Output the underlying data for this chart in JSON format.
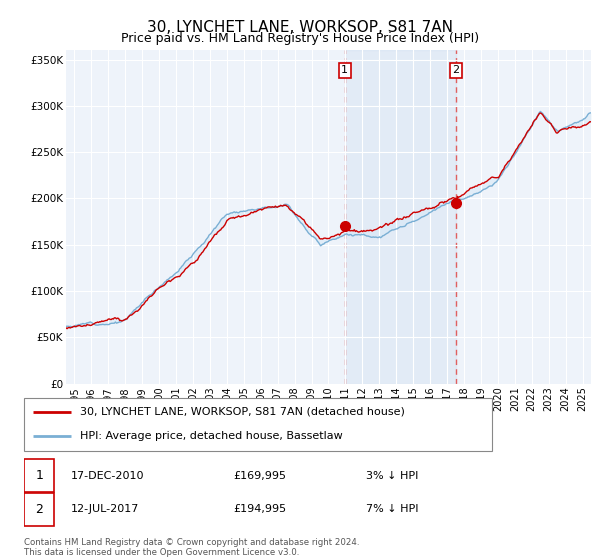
{
  "title": "30, LYNCHET LANE, WORKSOP, S81 7AN",
  "subtitle": "Price paid vs. HM Land Registry's House Price Index (HPI)",
  "ylabel_ticks": [
    "£0",
    "£50K",
    "£100K",
    "£150K",
    "£200K",
    "£250K",
    "£300K",
    "£350K"
  ],
  "ytick_vals": [
    0,
    50000,
    100000,
    150000,
    200000,
    250000,
    300000,
    350000
  ],
  "ylim": [
    0,
    360000
  ],
  "xlim_start": 1994.5,
  "xlim_end": 2025.5,
  "legend_line1": "30, LYNCHET LANE, WORKSOP, S81 7AN (detached house)",
  "legend_line2": "HPI: Average price, detached house, Bassetlaw",
  "purchase1_date": "17-DEC-2010",
  "purchase1_price": 169995,
  "purchase1_label": "£169,995",
  "purchase1_pct": "3% ↓ HPI",
  "purchase2_date": "12-JUL-2017",
  "purchase2_price": 194995,
  "purchase2_label": "£194,995",
  "purchase2_pct": "7% ↓ HPI",
  "footer": "Contains HM Land Registry data © Crown copyright and database right 2024.\nThis data is licensed under the Open Government Licence v3.0.",
  "line_red": "#cc0000",
  "line_blue": "#7aafd4",
  "fill_color": "#d6e8f7",
  "vline_color": "#e06060",
  "bg_color": "#eef3fa",
  "purchase1_x": 2010.96,
  "purchase2_x": 2017.53
}
